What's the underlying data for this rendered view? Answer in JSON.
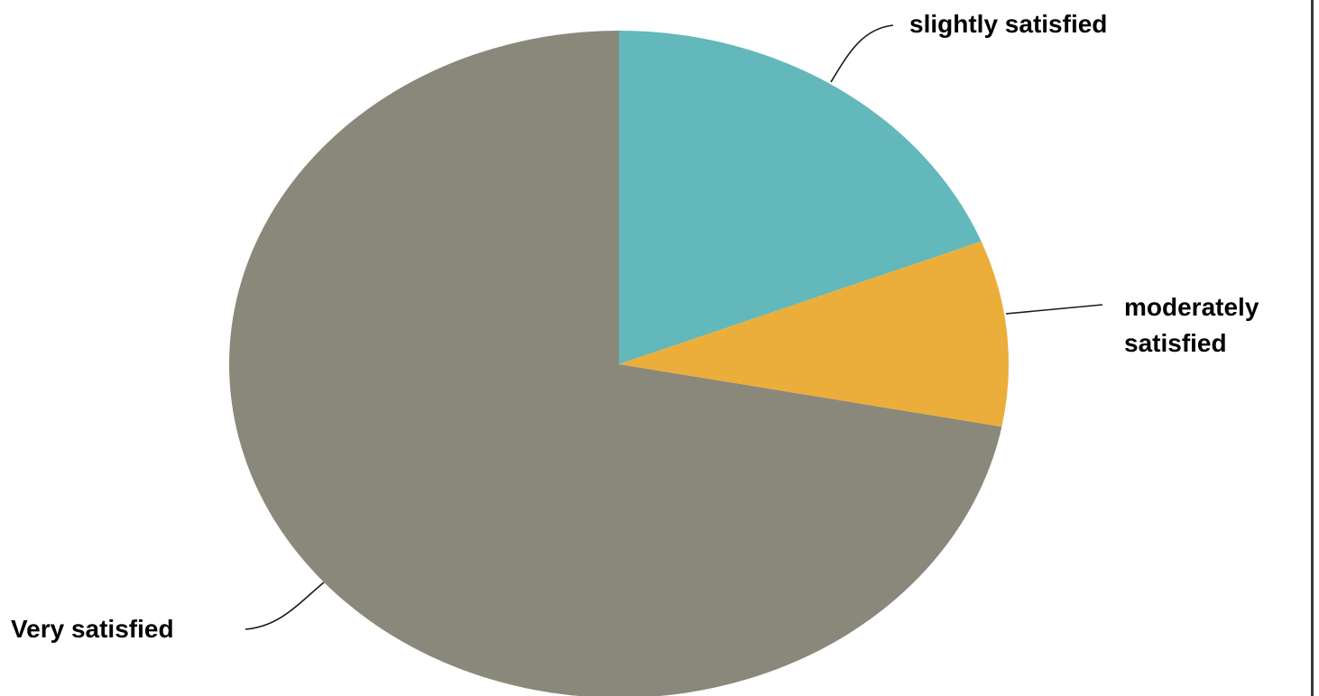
{
  "chart_data": {
    "type": "pie",
    "title": "",
    "slices": [
      {
        "label": "slightly satisfied",
        "value": 19,
        "color": "#62b8bb"
      },
      {
        "label": "moderately satisfied",
        "value": 9,
        "color": "#ecae3a"
      },
      {
        "label": "Very satisfied",
        "value": 72,
        "color": "#8a887b"
      }
    ],
    "start_angle_deg": 0,
    "direction": "clockwise",
    "legend": "none",
    "labels": "outside-with-leader-lines"
  }
}
